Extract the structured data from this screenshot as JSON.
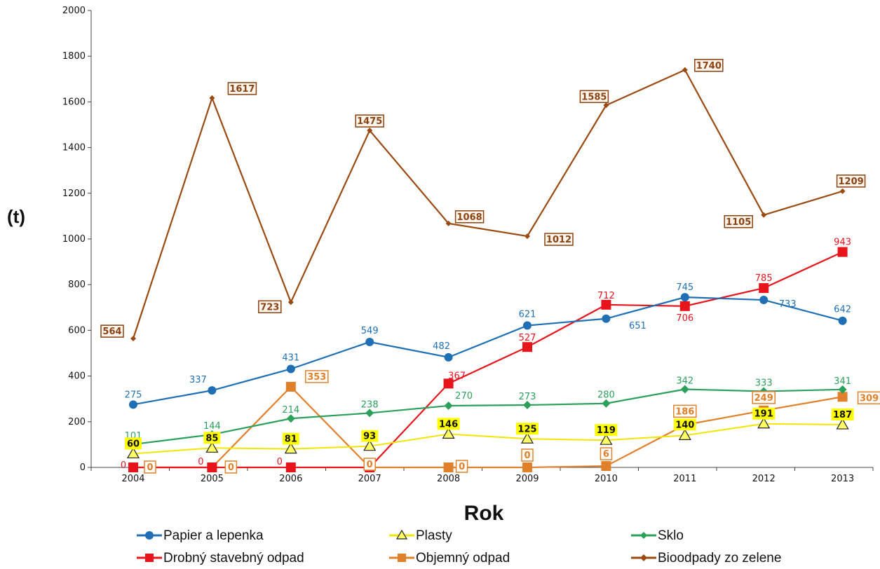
{
  "chart_data": {
    "type": "line",
    "xlabel": "Rok",
    "ylabel": "(t)",
    "ylim": [
      0,
      2000
    ],
    "yticks": [
      0,
      200,
      400,
      600,
      800,
      1000,
      1200,
      1400,
      1600,
      1800,
      2000
    ],
    "categories": [
      "2004",
      "2005",
      "2006",
      "2007",
      "2008",
      "2009",
      "2010",
      "2011",
      "2012",
      "2013"
    ],
    "grid": false,
    "legend_position": "bottom",
    "series": [
      {
        "name": "Papier a lepenka",
        "color": "#1f6fb5",
        "marker": "circle",
        "values": [
          275,
          337,
          431,
          549,
          482,
          621,
          651,
          745,
          733,
          642
        ]
      },
      {
        "name": "Plasty",
        "color": "#f2e600",
        "marker": "triangle",
        "values": [
          60,
          85,
          81,
          93,
          146,
          125,
          119,
          140,
          191,
          187
        ]
      },
      {
        "name": "Sklo",
        "color": "#2aa05a",
        "marker": "diamond",
        "values": [
          101,
          144,
          214,
          238,
          270,
          273,
          280,
          342,
          333,
          341
        ]
      },
      {
        "name": "Drobný stavebný odpad",
        "color": "#e8141b",
        "marker": "square",
        "values": [
          0,
          0,
          0,
          0,
          367,
          527,
          712,
          706,
          785,
          943
        ]
      },
      {
        "name": "Objemný odpad",
        "color": "#e0802a",
        "marker": "square",
        "values": [
          0,
          0,
          353,
          0,
          0,
          0,
          6,
          186,
          249,
          309
        ]
      },
      {
        "name": "Bioodpady zo zelene",
        "color": "#9a4a10",
        "marker": "diamond",
        "values": [
          564,
          1617,
          723,
          1475,
          1068,
          1012,
          1585,
          1740,
          1105,
          1209
        ]
      }
    ]
  }
}
